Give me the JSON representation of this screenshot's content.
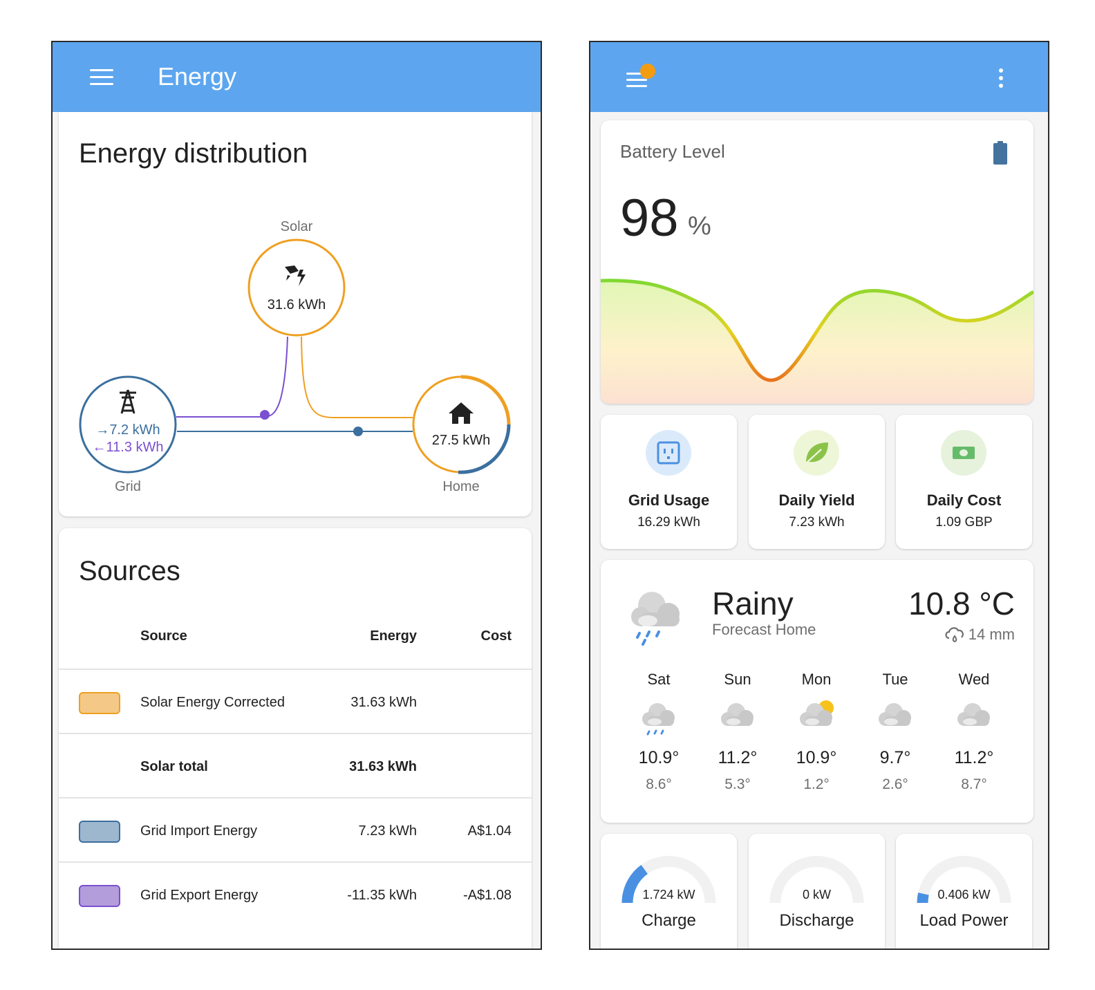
{
  "left": {
    "appbar": {
      "title": "Energy",
      "menu_icon": "hamburger-menu-icon"
    },
    "distribution": {
      "title": "Energy distribution",
      "solar": {
        "label": "Solar",
        "value": "31.6 kWh",
        "icon": "solar-power-icon",
        "color": "#ef9f21"
      },
      "grid": {
        "label": "Grid",
        "import": "→7.2 kWh",
        "export": "←11.3 kWh",
        "icon": "transmission-tower-icon",
        "import_color": "#3b6f9e",
        "export_color": "#7a4fd1"
      },
      "home": {
        "label": "Home",
        "value": "27.5 kWh",
        "icon": "home-icon"
      }
    },
    "sources": {
      "title": "Sources",
      "headers": {
        "source": "Source",
        "energy": "Energy",
        "cost": "Cost"
      },
      "rows": [
        {
          "name": "Solar Energy Corrected",
          "energy": "31.63 kWh",
          "cost": "",
          "swatch": "#f4c987",
          "swatch_border": "#ef9f21"
        },
        {
          "name": "Solar total",
          "energy": "31.63 kWh",
          "cost": "",
          "bold": true
        },
        {
          "name": "Grid Import Energy",
          "energy": "7.23 kWh",
          "cost": "A$1.04",
          "swatch": "#9db7cf",
          "swatch_border": "#3b6f9e"
        },
        {
          "name": "Grid Export Energy",
          "energy": "-11.35 kWh",
          "cost": "-A$1.08",
          "swatch": "#b39ddb",
          "swatch_border": "#7a4fd1"
        }
      ]
    }
  },
  "right": {
    "appbar": {
      "menu_icon": "hamburger-menu-icon",
      "more_icon": "more-vertical-icon"
    },
    "battery": {
      "title": "Battery Level",
      "value": "98",
      "unit": "%",
      "icon": "battery-icon"
    },
    "tiles": [
      {
        "name": "Grid Usage",
        "value": "16.29 kWh",
        "icon": "power-socket-icon",
        "bg": "#dbeafb",
        "fg": "#4a90e2"
      },
      {
        "name": "Daily Yield",
        "value": "7.23 kWh",
        "icon": "leaf-icon",
        "bg": "#eef6d8",
        "fg": "#8bc34a"
      },
      {
        "name": "Daily Cost",
        "value": "1.09 GBP",
        "icon": "cash-icon",
        "bg": "#e6f2dc",
        "fg": "#66bb6a"
      }
    ],
    "weather": {
      "condition": "Rainy",
      "subtitle": "Forecast Home",
      "temperature": "10.8 °C",
      "precipitation": "14 mm",
      "icon": "rainy-cloud-icon",
      "forecast": [
        {
          "day": "Sat",
          "high": "10.9°",
          "low": "8.6°",
          "icon": "rainy-icon"
        },
        {
          "day": "Sun",
          "high": "11.2°",
          "low": "5.3°",
          "icon": "cloudy-icon"
        },
        {
          "day": "Mon",
          "high": "10.9°",
          "low": "1.2°",
          "icon": "partly-cloudy-icon"
        },
        {
          "day": "Tue",
          "high": "9.7°",
          "low": "2.6°",
          "icon": "cloudy-icon"
        },
        {
          "day": "Wed",
          "high": "11.2°",
          "low": "8.7°",
          "icon": "cloudy-icon"
        }
      ]
    },
    "gauges": [
      {
        "name": "Charge",
        "value": "1.724 kW",
        "fraction": 0.3
      },
      {
        "name": "Discharge",
        "value": "0 kW",
        "fraction": 0
      },
      {
        "name": "Load Power",
        "value": "0.406 kW",
        "fraction": 0.07
      }
    ]
  }
}
